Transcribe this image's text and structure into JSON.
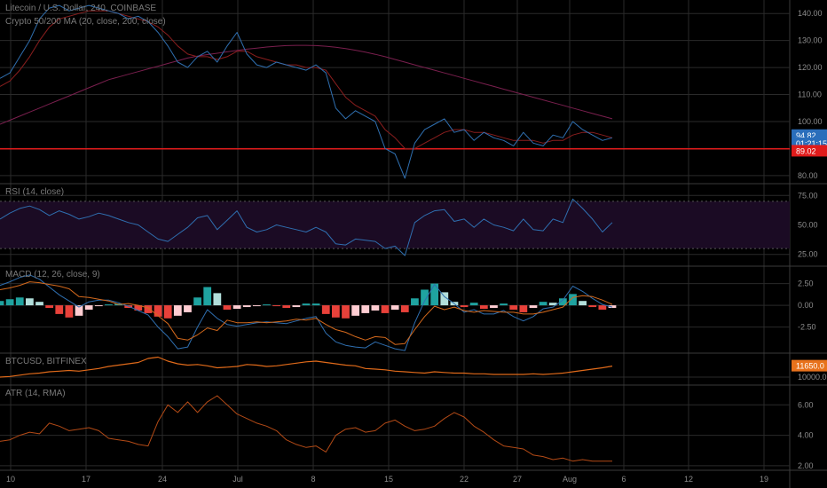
{
  "header": {
    "symbol_line": "Litecoin / U.S. Dollar, 240, COINBASE",
    "ma_line": "Crypto 50/200 MA (20, close, 200, close)"
  },
  "panes": {
    "rsi_title": "RSI (14, close)",
    "macd_title": "MACD (12, 26, close, 9)",
    "btc_title": "BTCUSD, BITFINEX",
    "atr_title": "ATR (14, RMA)"
  },
  "colors": {
    "background": "#000000",
    "grid": "#2a2a2a",
    "price_line": "#2f6fb0",
    "ma_fast": "#8b1e1e",
    "ma_slow": "#7a1f4e",
    "support_line": "#e01b1b",
    "rsi_band": "#1b0b24",
    "rsi_line": "#2f6fb0",
    "macd_line": "#2f6fb0",
    "signal_line": "#d4691c",
    "hist_up": "#1fa3a0",
    "hist_down": "#e8413a",
    "btc_line": "#e06a1a",
    "atr_line": "#b34a16"
  },
  "chart_data": [
    {
      "type": "line",
      "title": "Litecoin / U.S. Dollar, 240, COINBASE",
      "x_ticks": [
        "10",
        "17",
        "24",
        "Jul",
        "8",
        "15",
        "22",
        "27",
        "Aug",
        "6",
        "12",
        "19"
      ],
      "y_ticks": [
        140,
        130,
        120,
        110,
        100,
        90,
        80
      ],
      "ylim": [
        77,
        145
      ],
      "series": [
        {
          "name": "price",
          "values": [
            116,
            118,
            124,
            130,
            138,
            142,
            143,
            141,
            142,
            143,
            142,
            141,
            140,
            138,
            139,
            137,
            133,
            128,
            122,
            120,
            124,
            126,
            122,
            128,
            133,
            125,
            121,
            120,
            122,
            121,
            120,
            119,
            121,
            118,
            105,
            101,
            104,
            102,
            100,
            90,
            88,
            79,
            92,
            97,
            99,
            101,
            96,
            97,
            93,
            96,
            94,
            93,
            91,
            96,
            92,
            91,
            95,
            94,
            100,
            97,
            95,
            93,
            94
          ]
        },
        {
          "name": "MA 20",
          "values": [
            113,
            115,
            119,
            124,
            130,
            135,
            138,
            139,
            140,
            141,
            141,
            141,
            140,
            139,
            138,
            137,
            135,
            132,
            128,
            125,
            124,
            124,
            123,
            124,
            126,
            126,
            124,
            123,
            122,
            121,
            121,
            120,
            120,
            119,
            114,
            109,
            106,
            104,
            102,
            97,
            94,
            90,
            90,
            92,
            94,
            96,
            97,
            97,
            96,
            96,
            95,
            94,
            93,
            93,
            93,
            92,
            93,
            93,
            95,
            96,
            96,
            95,
            94
          ]
        },
        {
          "name": "MA 200",
          "values": [
            99,
            100.5,
            102,
            103.5,
            105,
            106.5,
            108,
            109.5,
            111,
            112.5,
            114,
            115.5,
            116.5,
            117.5,
            118.5,
            119.5,
            120.5,
            121.5,
            122.5,
            123.5,
            124.2,
            124.8,
            125.3,
            125.8,
            126.3,
            126.8,
            127.2,
            127.6,
            127.9,
            128.1,
            128.2,
            128.2,
            128.1,
            127.9,
            127.5,
            127,
            126.4,
            125.7,
            124.9,
            124,
            123,
            122,
            121,
            120,
            119,
            118,
            117,
            116,
            115,
            114,
            113,
            112,
            111,
            110,
            109,
            108,
            107,
            106,
            105,
            104,
            103,
            102,
            101
          ]
        }
      ],
      "horizontal_line": 89.9,
      "price_labels": [
        {
          "text": "94.82",
          "value": 94.82,
          "color": "#2a6ebb"
        },
        {
          "text": "01:21:15",
          "value": 91.8,
          "color": "#2a6ebb"
        },
        {
          "text": "89.02",
          "value": 89.02,
          "color": "#e01b1b"
        }
      ]
    },
    {
      "type": "line",
      "title": "RSI (14, close)",
      "y_ticks": [
        75,
        50,
        25
      ],
      "ylim": [
        15,
        85
      ],
      "band": [
        30,
        70
      ],
      "series": [
        {
          "name": "RSI",
          "values": [
            55,
            60,
            64,
            66,
            63,
            58,
            62,
            59,
            55,
            57,
            60,
            58,
            55,
            52,
            50,
            44,
            38,
            36,
            42,
            48,
            56,
            58,
            46,
            54,
            62,
            48,
            44,
            46,
            50,
            48,
            46,
            44,
            48,
            44,
            34,
            33,
            38,
            37,
            36,
            30,
            32,
            24,
            52,
            58,
            62,
            63,
            53,
            55,
            48,
            55,
            50,
            48,
            45,
            55,
            46,
            45,
            55,
            52,
            72,
            64,
            55,
            44,
            52
          ]
        }
      ]
    },
    {
      "type": "bar",
      "title": "MACD (12, 26, close, 9)",
      "y_ticks": [
        2.5,
        0.0,
        -2.5
      ],
      "ylim": [
        -5.5,
        4.5
      ],
      "series": [
        {
          "name": "histogram",
          "values": [
            0.5,
            0.7,
            0.9,
            0.8,
            0.4,
            -0.3,
            -1,
            -1.4,
            -1.2,
            -0.5,
            -0.1,
            0.1,
            0.2,
            -0.3,
            -0.6,
            -0.9,
            -1.3,
            -1.5,
            -1.2,
            -0.8,
            0.9,
            2.1,
            1.4,
            -0.5,
            -0.4,
            -0.2,
            -0.1,
            0.1,
            -0.1,
            -0.3,
            -0.2,
            0.2,
            0.2,
            -1,
            -1.4,
            -1.5,
            -1.2,
            -0.9,
            -0.6,
            -0.9,
            -0.5,
            -0.8,
            0.8,
            1.8,
            2.5,
            1.5,
            0.4,
            -0.2,
            0.3,
            -0.4,
            -0.3,
            0.2,
            -0.5,
            -0.8,
            -0.3,
            0.4,
            0.3,
            0.8,
            1.3,
            0.5,
            -0.2,
            -0.5,
            -0.3
          ]
        },
        {
          "name": "MACD",
          "values": [
            2.3,
            2.7,
            3.2,
            3.5,
            3.0,
            2.1,
            1.2,
            0.5,
            -0.2,
            0.4,
            0.6,
            0.6,
            0.3,
            -0.1,
            -0.6,
            -1.1,
            -2.5,
            -3.6,
            -5.0,
            -4.8,
            -2.5,
            -0.5,
            -1.5,
            -2.2,
            -2.4,
            -2.2,
            -2.0,
            -1.9,
            -2.0,
            -2.1,
            -1.8,
            -1.5,
            -1.3,
            -3.2,
            -4.2,
            -4.6,
            -4.8,
            -4.9,
            -4.2,
            -4.6,
            -5.0,
            -5.2,
            -2.0,
            0.5,
            2.4,
            1.0,
            0.2,
            -0.8,
            -0.5,
            -1.0,
            -1.0,
            -0.6,
            -1.3,
            -1.8,
            -1.3,
            -0.4,
            -0.2,
            0.6,
            2.2,
            1.6,
            0.8,
            0.1,
            -0.2
          ]
        },
        {
          "name": "signal",
          "values": [
            1.8,
            2.0,
            2.3,
            2.7,
            2.6,
            2.4,
            2.2,
            1.9,
            1.0,
            0.9,
            0.7,
            0.5,
            0.1,
            0.2,
            0.0,
            -0.3,
            -1.2,
            -2.1,
            -3.8,
            -4.0,
            -3.4,
            -2.6,
            -2.9,
            -1.7,
            -2.0,
            -2.0,
            -1.9,
            -2.0,
            -1.9,
            -1.8,
            -1.6,
            -1.7,
            -1.5,
            -2.2,
            -2.8,
            -3.1,
            -3.6,
            -4.0,
            -3.6,
            -3.7,
            -4.5,
            -4.4,
            -2.8,
            -1.3,
            -0.1,
            -0.5,
            -0.2,
            -0.6,
            -0.8,
            -0.6,
            -0.7,
            -0.8,
            -0.8,
            -1.0,
            -1.0,
            -0.8,
            -0.5,
            -0.2,
            0.9,
            1.1,
            1.0,
            0.6,
            0.1
          ]
        }
      ]
    },
    {
      "type": "line",
      "title": "BTCUSD, BITFINEX",
      "y_ticks": [
        10000.0
      ],
      "ylim": [
        8800,
        13600
      ],
      "series": [
        {
          "name": "BTCUSD",
          "values": [
            10000,
            10100,
            10300,
            10500,
            10600,
            10800,
            10900,
            11000,
            10900,
            11100,
            11300,
            11600,
            11800,
            12000,
            12200,
            12800,
            13000,
            12400,
            12000,
            11800,
            11900,
            11700,
            11400,
            11500,
            11600,
            11900,
            11800,
            11600,
            11700,
            11900,
            12100,
            12300,
            12400,
            12200,
            12000,
            11800,
            11700,
            11300,
            11200,
            11100,
            10900,
            10800,
            10700,
            10600,
            10800,
            10700,
            10600,
            10600,
            10500,
            10500,
            10400,
            10400,
            10400,
            10400,
            10500,
            10400,
            10500,
            10600,
            10800,
            11000,
            11200,
            11400,
            11650
          ]
        }
      ],
      "price_label": {
        "text": "11650.0",
        "value": 11650
      }
    },
    {
      "type": "line",
      "title": "ATR (14, RMA)",
      "y_ticks": [
        6.0,
        4.0,
        2.0
      ],
      "ylim": [
        1.7,
        7.3
      ],
      "series": [
        {
          "name": "ATR",
          "values": [
            3.6,
            3.7,
            4.0,
            4.2,
            4.1,
            4.8,
            4.6,
            4.3,
            4.4,
            4.5,
            4.3,
            3.8,
            3.7,
            3.6,
            3.4,
            3.3,
            4.9,
            6.0,
            5.5,
            6.2,
            5.5,
            6.2,
            6.6,
            6.0,
            5.4,
            5.1,
            4.8,
            4.6,
            4.3,
            3.7,
            3.4,
            3.2,
            3.3,
            2.9,
            4.0,
            4.4,
            4.5,
            4.2,
            4.3,
            4.8,
            5.0,
            4.6,
            4.3,
            4.4,
            4.6,
            5.1,
            5.5,
            5.2,
            4.6,
            4.2,
            3.7,
            3.3,
            3.2,
            3.1,
            2.7,
            2.6,
            2.4,
            2.5,
            2.3,
            2.4,
            2.3,
            2.3,
            2.3
          ]
        }
      ]
    }
  ]
}
